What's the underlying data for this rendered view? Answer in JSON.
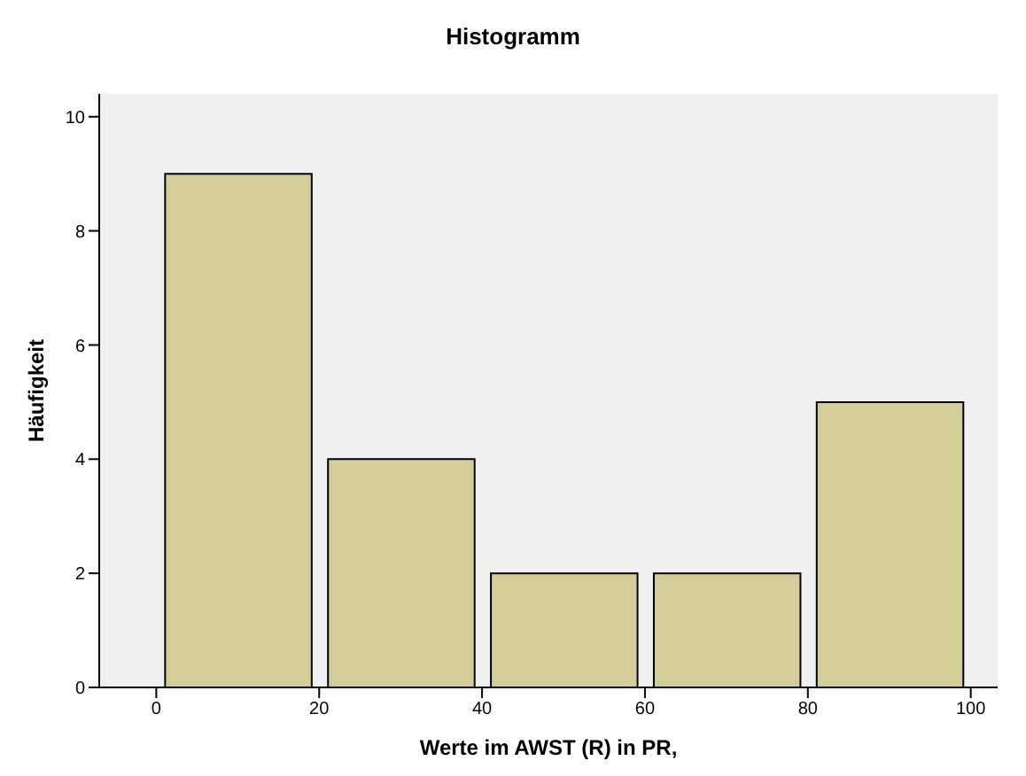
{
  "chart_data": {
    "type": "histogram",
    "title": "Histogramm",
    "xlabel": "Werte im AWST (R) in PR,",
    "ylabel": "Häufigkeit",
    "bins": [
      0,
      20,
      40,
      60,
      80,
      100
    ],
    "values": [
      9,
      4,
      2,
      2,
      5
    ],
    "color": "#d3ce97",
    "xlim": [
      -7,
      103.3
    ],
    "xticks": [
      0,
      20,
      40,
      60,
      80,
      100
    ],
    "ylim": [
      0,
      10.4
    ],
    "yticks": [
      0,
      2,
      4,
      6,
      8,
      10
    ],
    "grid": false
  }
}
